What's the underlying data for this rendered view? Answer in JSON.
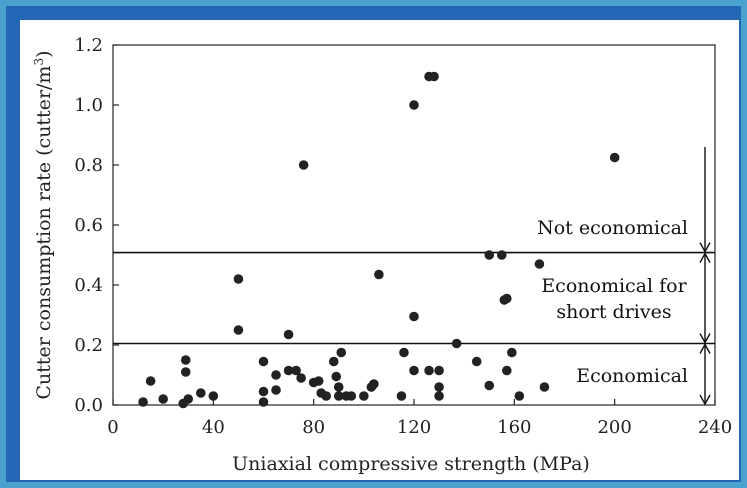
{
  "chart_data": {
    "type": "scatter",
    "title": "",
    "xlabel": "Uniaxial compressive strength (MPa)",
    "ylabel_main": "Cutter consumption rate (cutter/m",
    "ylabel_sup": "3",
    "ylabel_tail": ")",
    "xlim": [
      0,
      240
    ],
    "ylim": [
      0,
      1.2
    ],
    "x_ticks": [
      "0",
      "40",
      "80",
      "120",
      "160",
      "200",
      "240"
    ],
    "y_ticks": [
      "0.0",
      "0.2",
      "0.4",
      "0.6",
      "0.8",
      "1.0",
      "1.2"
    ],
    "grid": false,
    "thresholds": [
      0.205,
      0.508
    ],
    "annotations": [
      "Not economical",
      "Economical for",
      "short drives",
      "Economical"
    ],
    "points": [
      [
        12,
        0.01
      ],
      [
        15,
        0.08
      ],
      [
        20,
        0.02
      ],
      [
        28,
        0.005
      ],
      [
        29,
        0.15
      ],
      [
        29,
        0.11
      ],
      [
        30,
        0.02
      ],
      [
        35,
        0.04
      ],
      [
        40,
        0.03
      ],
      [
        50,
        0.42
      ],
      [
        50,
        0.25
      ],
      [
        60,
        0.145
      ],
      [
        60,
        0.045
      ],
      [
        60,
        0.01
      ],
      [
        65,
        0.1
      ],
      [
        65,
        0.05
      ],
      [
        70,
        0.235
      ],
      [
        70,
        0.115
      ],
      [
        73,
        0.115
      ],
      [
        75,
        0.09
      ],
      [
        76,
        0.8
      ],
      [
        80,
        0.075
      ],
      [
        82,
        0.08
      ],
      [
        83,
        0.04
      ],
      [
        85,
        0.03
      ],
      [
        88,
        0.145
      ],
      [
        89,
        0.095
      ],
      [
        90,
        0.06
      ],
      [
        90,
        0.03
      ],
      [
        91,
        0.175
      ],
      [
        93,
        0.03
      ],
      [
        95,
        0.03
      ],
      [
        100,
        0.03
      ],
      [
        103,
        0.06
      ],
      [
        104,
        0.07
      ],
      [
        106,
        0.435
      ],
      [
        115,
        0.03
      ],
      [
        116,
        0.175
      ],
      [
        120,
        1.0
      ],
      [
        120,
        0.295
      ],
      [
        120,
        0.115
      ],
      [
        126,
        1.095
      ],
      [
        128,
        1.095
      ],
      [
        126,
        0.115
      ],
      [
        130,
        0.115
      ],
      [
        130,
        0.06
      ],
      [
        130,
        0.03
      ],
      [
        137,
        0.205
      ],
      [
        145,
        0.145
      ],
      [
        150,
        0.5
      ],
      [
        150,
        0.065
      ],
      [
        155,
        0.5
      ],
      [
        156,
        0.35
      ],
      [
        157,
        0.355
      ],
      [
        157,
        0.115
      ],
      [
        159,
        0.175
      ],
      [
        162,
        0.03
      ],
      [
        170,
        0.47
      ],
      [
        172,
        0.06
      ],
      [
        200,
        0.825
      ]
    ]
  }
}
